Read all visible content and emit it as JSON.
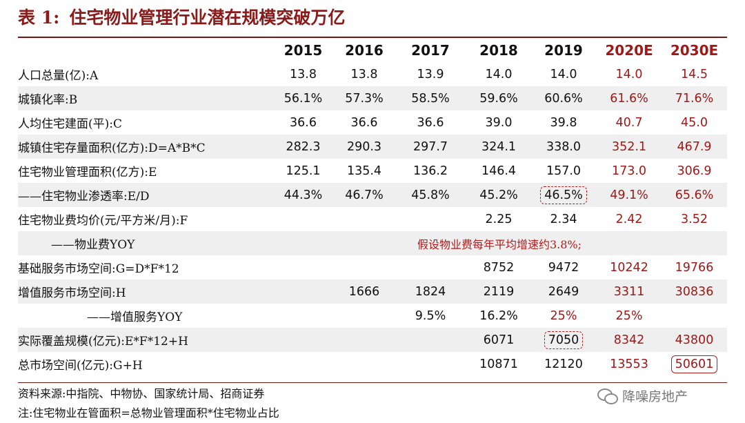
{
  "title": {
    "label": "表 1:",
    "text": "住宅物业管理行业潜在规模突破万亿"
  },
  "table": {
    "headers": [
      "2015",
      "2016",
      "2017",
      "2018",
      "2019",
      "2020E",
      "2030E"
    ],
    "rows": [
      {
        "label": "人口总量(亿):A",
        "values": [
          "13.8",
          "13.8",
          "13.9",
          "14.0",
          "14.0",
          "14.0",
          "14.5"
        ]
      },
      {
        "label": "城镇化率:B",
        "values": [
          "56.1%",
          "57.3%",
          "58.5%",
          "59.6%",
          "60.6%",
          "61.6%",
          "71.6%"
        ]
      },
      {
        "label": "人均住宅建面(平):C",
        "values": [
          "36.6",
          "36.6",
          "36.6",
          "39.0",
          "39.8",
          "40.7",
          "45.0"
        ]
      },
      {
        "label": "城镇住宅存量面积(亿方):D=A*B*C",
        "values": [
          "282.3",
          "290.3",
          "297.7",
          "324.1",
          "338.0",
          "352.1",
          "467.9"
        ]
      },
      {
        "label": "住宅物业管理面积(亿方):E",
        "values": [
          "125.1",
          "135.4",
          "136.2",
          "146.4",
          "157.0",
          "173.0",
          "306.9"
        ]
      },
      {
        "label": "——住宅物业渗透率:E/D",
        "values": [
          "44.3%",
          "46.7%",
          "45.8%",
          "45.2%",
          "46.5%",
          "49.1%",
          "65.6%"
        ]
      },
      {
        "label": "住宅物业费均价(元/平方米/月):F",
        "values": [
          "",
          "",
          "",
          "2.25",
          "2.34",
          "2.42",
          "3.52"
        ]
      },
      {
        "label": "——物业费YOY",
        "note": "假设物业费每年平均增速约3.8%;"
      },
      {
        "label": "基础服务市场空间:G=D*F*12",
        "values": [
          "",
          "",
          "",
          "8752",
          "9472",
          "10242",
          "19766"
        ]
      },
      {
        "label": "增值服务市场空间:H",
        "values": [
          "",
          "1666",
          "1824",
          "2119",
          "2649",
          "3311",
          "30836"
        ]
      },
      {
        "label": "——增值服务YOY",
        "values": [
          "",
          "",
          "9.5%",
          "16.2%",
          "25%",
          "25%",
          ""
        ]
      },
      {
        "label": "实际覆盖规模(亿元):E*F*12+H",
        "values": [
          "",
          "",
          "",
          "6071",
          "7050",
          "8342",
          "43800"
        ]
      },
      {
        "label": "总市场空间(亿元):G+H",
        "values": [
          "",
          "",
          "",
          "10871",
          "12120",
          "13553",
          "50601"
        ]
      }
    ]
  },
  "source": "资料来源:中指院、中物协、国家统计局、招商证券",
  "note": "注:住宅物业在管面积=总物业管理面积*住宅物业占比",
  "watermark": "降噪房地产",
  "colors": {
    "accent": "#a01818",
    "title": "#8b1a1a",
    "stripe": "#efefef"
  }
}
